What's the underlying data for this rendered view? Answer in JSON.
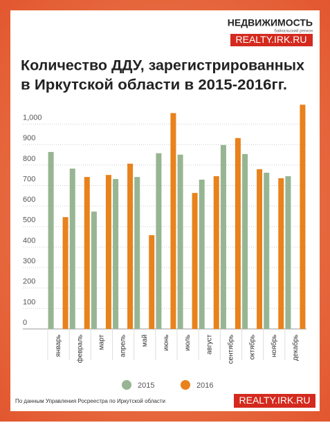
{
  "logo": {
    "name": "НЕДВИЖИМОСТЬ",
    "tagline": "байкальский регион",
    "site": "REALTY.IRK.RU"
  },
  "footer": {
    "source": "По данным Управления Росреестра по Иркутской области",
    "site": "REALTY.IRK.RU"
  },
  "chart_data": {
    "type": "bar",
    "title": [
      "Количество ДДУ, зарегистрированных",
      "в Иркутской области в 2015-2016гг."
    ],
    "categories": [
      "январь",
      "февраль",
      "март",
      "апрель",
      "май",
      "июнь",
      "июль",
      "август",
      "сентябрь",
      "октябрь",
      "ноябрь",
      "декабрь"
    ],
    "series": [
      {
        "name": "2015",
        "color": "#97b592",
        "values": [
          864,
          783,
          573,
          732,
          742,
          858,
          851,
          729,
          898,
          854,
          763,
          746
        ]
      },
      {
        "name": "2016",
        "color": "#e8821c",
        "values": [
          546,
          742,
          752,
          807,
          458,
          1054,
          664,
          746,
          932,
          780,
          736,
          1095
        ]
      }
    ],
    "ylim": [
      0,
      1100
    ],
    "yticks": [
      0,
      100,
      200,
      300,
      400,
      500,
      600,
      700,
      800,
      900,
      {
        "value": 1000,
        "label": "1,000"
      }
    ],
    "grid": true,
    "legend": "bottom"
  }
}
